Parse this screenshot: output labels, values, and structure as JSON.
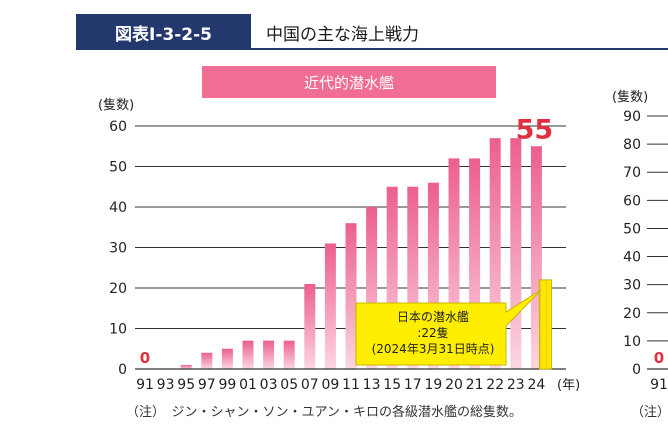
{
  "figure": {
    "id": "図表Ⅰ-3-2-5",
    "title": "中国の主な海上戦力"
  },
  "chart_data": [
    {
      "type": "bar",
      "title": "近代的潜水艦",
      "ylabel": "(隻数)",
      "xlabel": "(年)",
      "ylim": [
        0,
        60
      ],
      "yticks": [
        0,
        10,
        20,
        30,
        40,
        50,
        60
      ],
      "grid": true,
      "categories": [
        "91",
        "93",
        "95",
        "97",
        "99",
        "01",
        "03",
        "05",
        "07",
        "09",
        "11",
        "13",
        "15",
        "17",
        "19",
        "20",
        "21",
        "22",
        "23",
        "24"
      ],
      "values": [
        0,
        0,
        1,
        4,
        5,
        7,
        7,
        7,
        21,
        31,
        36,
        40,
        45,
        45,
        46,
        52,
        52,
        57,
        57,
        55
      ],
      "data_labels": [
        {
          "category": "91",
          "text": "0"
        },
        {
          "category": "24",
          "text": "55"
        }
      ],
      "annotation": {
        "lines": [
          "日本の潜水艦",
          ":22隻",
          "(2024年3月31日時点)"
        ],
        "category": "24",
        "value": 22
      },
      "note": "（注）　ジン・シャン・ソン・ユアン・キロの各級潜水艦の総隻数。"
    },
    {
      "type": "bar",
      "ylabel": "(隻数)",
      "ylim": [
        0,
        90
      ],
      "yticks": [
        0,
        10,
        20,
        30,
        40,
        50,
        60,
        70,
        80,
        90
      ],
      "grid": true,
      "categories": [
        "91"
      ],
      "values": [
        0
      ],
      "data_labels": [
        {
          "category": "91",
          "text": "0"
        }
      ],
      "note": "（注）"
    }
  ],
  "colors": {
    "header": "#23386d",
    "title_bar": "#f06e93",
    "bar_top": "#ec5f8c",
    "bar_bottom": "#fbd6e3",
    "highlight": "#e03040",
    "annotation_fill": "#ffee00",
    "annotation_stroke": "#c8b400",
    "japan_bar": "#ffe600"
  }
}
